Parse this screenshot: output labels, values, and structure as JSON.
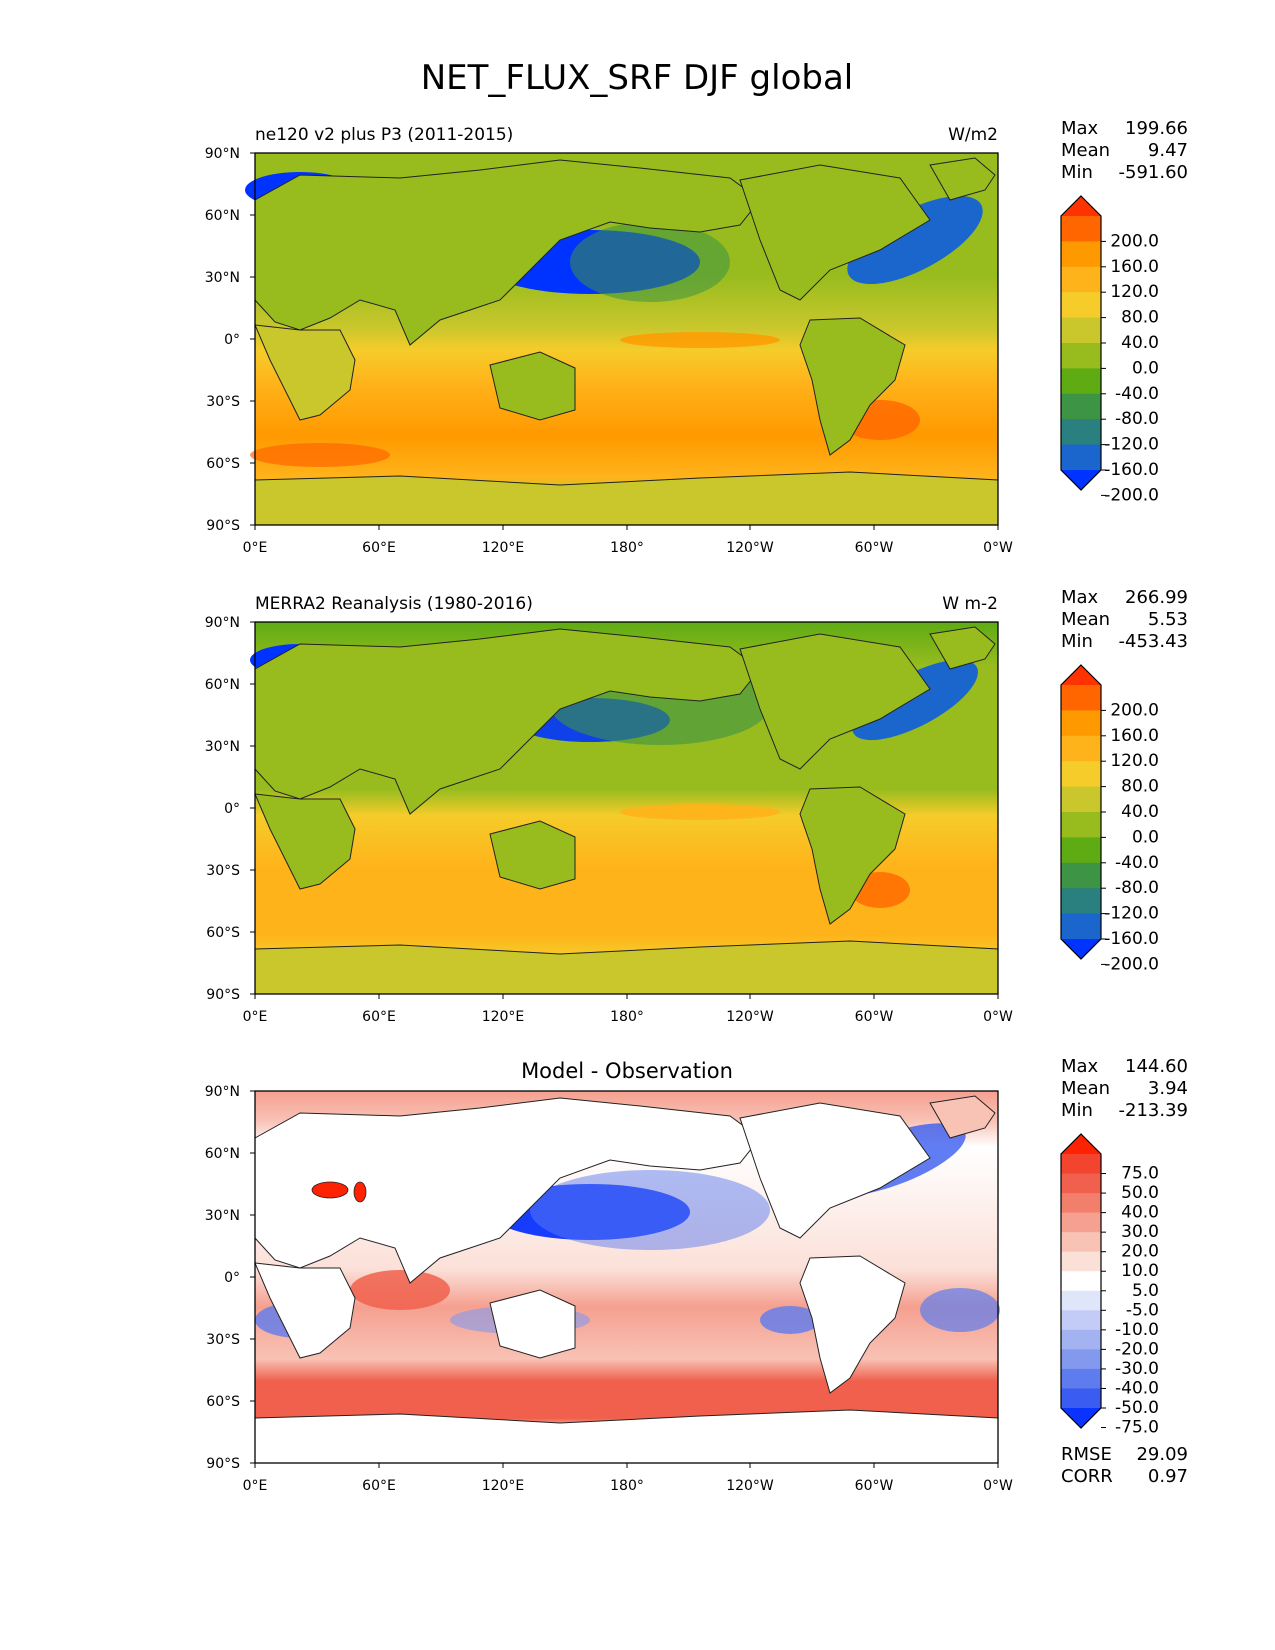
{
  "figure": {
    "title": "NET_FLUX_SRF DJF global"
  },
  "chart_data": [
    {
      "type": "heatmap",
      "title": "ne120 v2 plus P3 (2011-2015)",
      "units": "W/m2",
      "stats": {
        "max": "199.66",
        "mean": "9.47",
        "min": "-591.60"
      },
      "stats_labels": {
        "max": "Max",
        "mean": "Mean",
        "min": "Min"
      },
      "xticks": [
        "0°E",
        "60°E",
        "120°E",
        "180°",
        "120°W",
        "60°W",
        "0°W"
      ],
      "yticks": [
        "90°N",
        "60°N",
        "30°N",
        "0°",
        "30°S",
        "60°S",
        "90°S"
      ],
      "xlim": [
        0,
        360
      ],
      "ylim": [
        -90,
        90
      ],
      "colorbar": {
        "labels": [
          "200.0",
          "160.0",
          "120.0",
          "80.0",
          "40.0",
          "0.0",
          "-40.0",
          "-80.0",
          "-120.0",
          "-160.0",
          "-200.0"
        ],
        "colors": [
          "#ff3300",
          "#ff6600",
          "#ff9900",
          "#ffb31a",
          "#f5cc2a",
          "#c9c72c",
          "#98bc1e",
          "#5eab14",
          "#3c9444",
          "#2a7f7f",
          "#1a66cc",
          "#0033ff"
        ]
      }
    },
    {
      "type": "heatmap",
      "title": "MERRA2 Reanalysis (1980-2016)",
      "units": "W m-2",
      "stats": {
        "max": "266.99",
        "mean": "5.53",
        "min": "-453.43"
      },
      "stats_labels": {
        "max": "Max",
        "mean": "Mean",
        "min": "Min"
      },
      "xticks": [
        "0°E",
        "60°E",
        "120°E",
        "180°",
        "120°W",
        "60°W",
        "0°W"
      ],
      "yticks": [
        "90°N",
        "60°N",
        "30°N",
        "0°",
        "30°S",
        "60°S",
        "90°S"
      ],
      "xlim": [
        0,
        360
      ],
      "ylim": [
        -90,
        90
      ],
      "colorbar": {
        "labels": [
          "200.0",
          "160.0",
          "120.0",
          "80.0",
          "40.0",
          "0.0",
          "-40.0",
          "-80.0",
          "-120.0",
          "-160.0",
          "-200.0"
        ],
        "colors": [
          "#ff3300",
          "#ff6600",
          "#ff9900",
          "#ffb31a",
          "#f5cc2a",
          "#c9c72c",
          "#98bc1e",
          "#5eab14",
          "#3c9444",
          "#2a7f7f",
          "#1a66cc",
          "#0033ff"
        ]
      }
    },
    {
      "type": "heatmap",
      "title": "Model - Observation",
      "units": "",
      "stats": {
        "max": "144.60",
        "mean": "3.94",
        "min": "-213.39"
      },
      "stats_labels": {
        "max": "Max",
        "mean": "Mean",
        "min": "Min"
      },
      "metrics": {
        "rmse": "29.09",
        "corr": "0.97"
      },
      "metrics_labels": {
        "rmse": "RMSE",
        "corr": "CORR"
      },
      "xticks": [
        "0°E",
        "60°E",
        "120°E",
        "180°",
        "120°W",
        "60°W",
        "0°W"
      ],
      "yticks": [
        "90°N",
        "60°N",
        "30°N",
        "0°",
        "30°S",
        "60°S",
        "90°S"
      ],
      "xlim": [
        0,
        360
      ],
      "ylim": [
        -90,
        90
      ],
      "colorbar": {
        "labels": [
          "75.0",
          "50.0",
          "40.0",
          "30.0",
          "20.0",
          "10.0",
          "5.0",
          "-5.0",
          "-10.0",
          "-20.0",
          "-30.0",
          "-40.0",
          "-50.0",
          "-75.0"
        ],
        "colors": [
          "#ff2200",
          "#f2442e",
          "#f0604c",
          "#f27f6b",
          "#f5a090",
          "#f8c2b5",
          "#fbe0d8",
          "#ffffff",
          "#dfe6fa",
          "#c2ccf6",
          "#a3b3f2",
          "#8299ee",
          "#5e7ced",
          "#3a5cf0",
          "#0a33ff"
        ]
      }
    }
  ]
}
